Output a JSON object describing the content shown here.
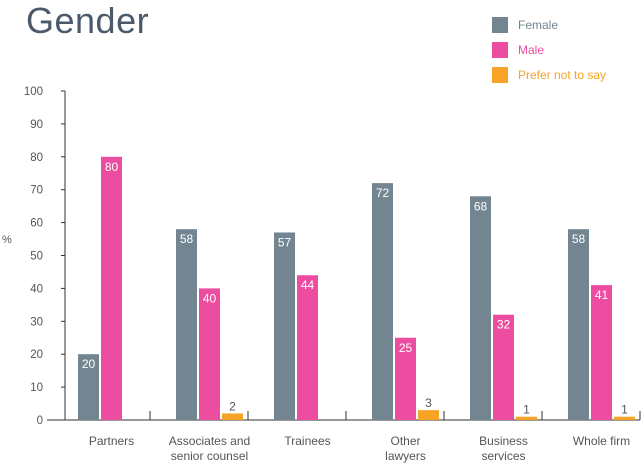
{
  "chart_data": {
    "type": "bar",
    "title": "Gender",
    "ylabel": "%",
    "ylim": [
      0,
      100
    ],
    "yticks": [
      0,
      10,
      20,
      30,
      40,
      50,
      60,
      70,
      80,
      90,
      100
    ],
    "legend_position": "top-right",
    "categories": [
      [
        "Partners"
      ],
      [
        "Associates and",
        "senior counsel"
      ],
      [
        "Trainees"
      ],
      [
        "Other",
        "lawyers"
      ],
      [
        "Business",
        "services"
      ],
      [
        "Whole firm"
      ]
    ],
    "series": [
      {
        "name": "Female",
        "color": "#728591",
        "values": [
          20,
          58,
          57,
          72,
          68,
          58
        ],
        "labels": [
          "20",
          "58",
          "57",
          "72",
          "68",
          "58"
        ]
      },
      {
        "name": "Male",
        "color": "#ec4da0",
        "values": [
          80,
          40,
          44,
          25,
          32,
          41
        ],
        "labels": [
          "80",
          "40",
          "44",
          "25",
          "32",
          "41"
        ]
      },
      {
        "name": "Prefer not to say",
        "color": "#f7a326",
        "values": [
          0,
          2,
          0,
          3,
          1,
          1
        ],
        "labels": [
          null,
          "2",
          null,
          "3",
          "1",
          "1"
        ]
      }
    ]
  }
}
